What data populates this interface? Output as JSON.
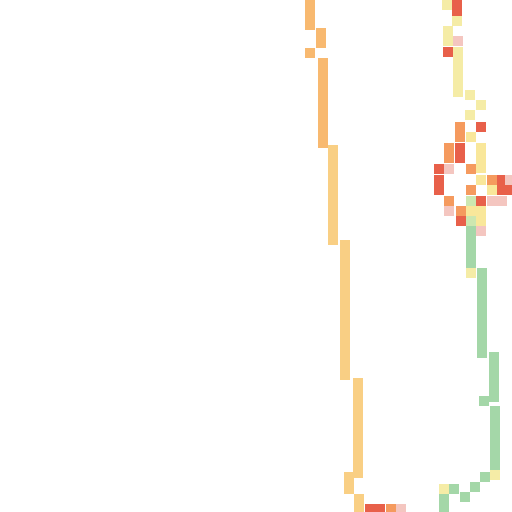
{
  "map": {
    "type": "raster-tile",
    "background": "#ffffff",
    "palette": {
      "red": "#e8604a",
      "orange": "#f59a5e",
      "light_orange": "#f8b970",
      "tan": "#f9cf84",
      "pale_yellow": "#f5eca6",
      "yellow": "#f9e79a",
      "pink": "#f4c6c0",
      "light_green": "#cde7b0",
      "green": "#a4d7a8"
    },
    "layers": [
      {
        "name": "western-track",
        "colors": [
          "light_orange",
          "tan"
        ]
      },
      {
        "name": "eastern-track",
        "colors": [
          "red",
          "orange",
          "pale_yellow",
          "pink",
          "light_green",
          "green"
        ]
      },
      {
        "name": "bottom-crossing",
        "colors": [
          "red",
          "pink"
        ]
      }
    ]
  }
}
